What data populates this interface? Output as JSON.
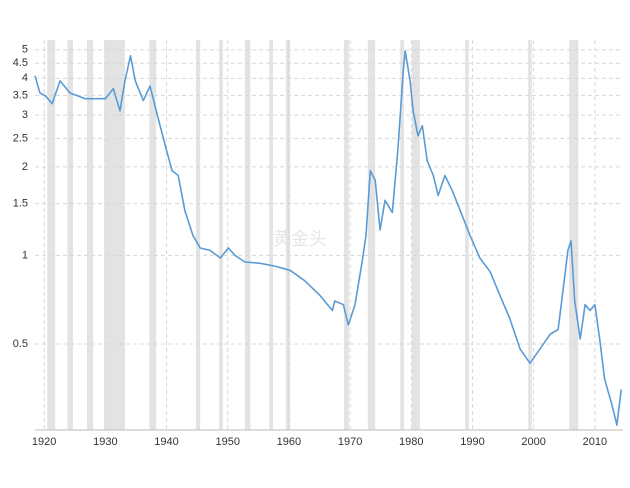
{
  "chart_data": {
    "type": "line",
    "log_scale": true,
    "grid": true,
    "watermark": "黄金头",
    "xlim": [
      1918.5,
      2014.6
    ],
    "xticks": [
      1920,
      1930,
      1940,
      1950,
      1960,
      1970,
      1980,
      1990,
      2000,
      2010
    ],
    "ylim": [
      0.255,
      5.4
    ],
    "yticks": [
      0.5,
      1,
      1.5,
      2,
      2.5,
      3,
      3.5,
      4,
      4.5,
      5
    ],
    "recession_color": "#e3e3e3",
    "recessions": [
      [
        1920.5,
        1921.8
      ],
      [
        1923.8,
        1924.7
      ],
      [
        1927.0,
        1928.0
      ],
      [
        1929.8,
        1933.2
      ],
      [
        1937.2,
        1938.3
      ],
      [
        1944.8,
        1945.5
      ],
      [
        1948.6,
        1949.2
      ],
      [
        1952.8,
        1953.7
      ],
      [
        1956.8,
        1957.4
      ],
      [
        1959.5,
        1960.2
      ],
      [
        1969.0,
        1969.8
      ],
      [
        1972.9,
        1974.1
      ],
      [
        1978.2,
        1978.8
      ],
      [
        1980.1,
        1981.4
      ],
      [
        1988.8,
        1989.4
      ],
      [
        1999.1,
        1999.7
      ],
      [
        2005.8,
        2007.3
      ]
    ],
    "x": [
      1918.5,
      1919.3,
      1920.2,
      1921.3,
      1922.6,
      1924.2,
      1926.7,
      1930.0,
      1931.3,
      1932.4,
      1933.2,
      1934.1,
      1934.9,
      1936.2,
      1937.3,
      1938.5,
      1939.8,
      1940.9,
      1941.9,
      1943.0,
      1944.3,
      1945.5,
      1947.1,
      1948.8,
      1950.1,
      1951.2,
      1952.8,
      1955.3,
      1957.7,
      1960.2,
      1962.6,
      1965.1,
      1967.1,
      1967.5,
      1968.9,
      1969.7,
      1970.8,
      1972.0,
      1972.6,
      1973.3,
      1974.1,
      1974.9,
      1975.7,
      1976.9,
      1977.8,
      1978.7,
      1979.0,
      1979.8,
      1980.3,
      1981.1,
      1981.8,
      1982.6,
      1983.6,
      1984.4,
      1985.5,
      1986.7,
      1988.0,
      1989.6,
      1991.2,
      1992.9,
      1994.5,
      1996.1,
      1997.8,
      1999.4,
      2001.0,
      2002.7,
      2004.0,
      2004.8,
      2005.6,
      2006.1,
      2006.7,
      2007.6,
      2008.4,
      2009.2,
      2010.0,
      2010.8,
      2011.6,
      2012.8,
      2013.6,
      2014.3
    ],
    "series": [
      {
        "color": "#5b9bd5",
        "values": [
          4.08,
          3.57,
          3.49,
          3.28,
          3.92,
          3.57,
          3.41,
          3.41,
          3.69,
          3.1,
          3.92,
          4.77,
          3.92,
          3.36,
          3.77,
          2.99,
          2.36,
          1.94,
          1.87,
          1.42,
          1.17,
          1.06,
          1.04,
          0.98,
          1.06,
          1.0,
          0.95,
          0.94,
          0.92,
          0.89,
          0.82,
          0.73,
          0.65,
          0.7,
          0.68,
          0.58,
          0.68,
          0.96,
          1.17,
          1.94,
          1.8,
          1.22,
          1.54,
          1.4,
          2.27,
          4.24,
          4.96,
          3.92,
          3.1,
          2.55,
          2.76,
          2.1,
          1.87,
          1.6,
          1.87,
          1.66,
          1.42,
          1.17,
          0.98,
          0.88,
          0.73,
          0.61,
          0.48,
          0.43,
          0.48,
          0.54,
          0.56,
          0.76,
          1.04,
          1.12,
          0.7,
          0.52,
          0.68,
          0.65,
          0.68,
          0.52,
          0.38,
          0.31,
          0.265,
          0.35
        ]
      }
    ]
  }
}
